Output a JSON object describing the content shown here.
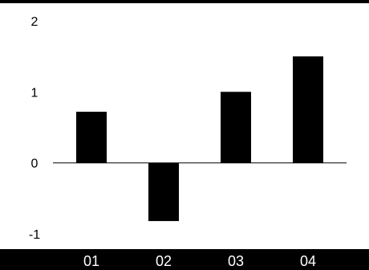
{
  "chart_data": {
    "type": "bar",
    "categories": [
      "01",
      "02",
      "03",
      "04"
    ],
    "values": [
      0.72,
      -0.82,
      1.0,
      1.5
    ],
    "title": "",
    "xlabel": "",
    "ylabel": "",
    "ylim": [
      -1,
      2
    ],
    "yticks": [
      2,
      1,
      0,
      -1
    ],
    "ytick_labels": [
      "2",
      "1",
      "0",
      "-1"
    ],
    "grid": false,
    "legend": "none"
  },
  "colors": {
    "bar": "#000000",
    "frame_band": "#000000",
    "xtick_text": "#ffffff",
    "background": "#ffffff"
  }
}
